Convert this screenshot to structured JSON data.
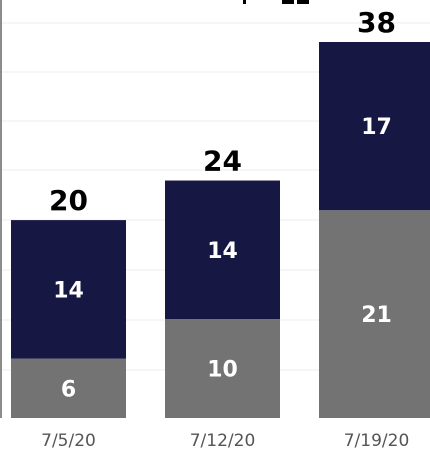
{
  "chart_data": {
    "type": "bar",
    "stacked": true,
    "categories": [
      "7/5/20",
      "7/12/20",
      "7/19/20"
    ],
    "series": [
      {
        "values": [
          6,
          10,
          21
        ],
        "color": "#737373"
      },
      {
        "values": [
          14,
          14,
          17
        ],
        "color": "#171743"
      }
    ],
    "totals": [
      20,
      24,
      38
    ],
    "ylim": [
      0,
      38
    ],
    "grid": true,
    "xlabel": "",
    "ylabel": ""
  }
}
